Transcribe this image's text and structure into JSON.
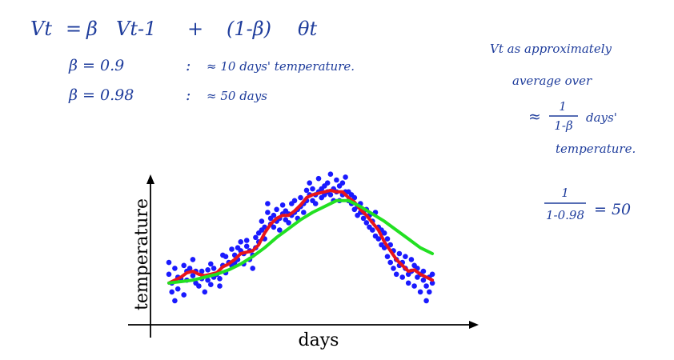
{
  "notes": {
    "formula": {
      "lhs": "Vt",
      "eq": "=",
      "beta": "β",
      "prev": "Vt-1",
      "plus": "+",
      "one_minus_beta": "(1-β)",
      "theta": "θt"
    },
    "beta_rows": [
      {
        "beta": "β = 0.9",
        "sep": ":",
        "approx": "≈ 10 days' temperature."
      },
      {
        "beta": "β = 0.98",
        "sep": ":",
        "approx": "≈ 50 days"
      }
    ],
    "side": {
      "line1": "Vt as approximately",
      "line2": "average over",
      "approx_sym": "≈",
      "frac_num": "1",
      "frac_den": "1-β",
      "days": "days'",
      "line4": "temperature.",
      "calc_num": "1",
      "calc_den": "1-0.98",
      "calc_eq": "= 50"
    }
  },
  "chart_data": {
    "type": "scatter",
    "title": "",
    "xlabel": "days",
    "ylabel": "temperature",
    "xlim": [
      0,
      100
    ],
    "ylim": [
      0,
      100
    ],
    "grid": false,
    "legend": "none",
    "ticks": "none",
    "colors": {
      "scatter": "#1a1aff",
      "red_line": "#e8141b",
      "green_line": "#22e022",
      "axis": "#000000"
    },
    "scatter_points": [
      [
        4,
        38
      ],
      [
        4,
        30
      ],
      [
        5,
        24
      ],
      [
        5,
        18
      ],
      [
        6,
        34
      ],
      [
        6,
        12
      ],
      [
        7,
        28
      ],
      [
        7,
        20
      ],
      [
        8,
        27
      ],
      [
        9,
        36
      ],
      [
        9,
        16
      ],
      [
        10,
        26
      ],
      [
        10,
        32
      ],
      [
        11,
        34
      ],
      [
        12,
        40
      ],
      [
        12,
        29
      ],
      [
        13,
        32
      ],
      [
        13,
        24
      ],
      [
        14,
        22
      ],
      [
        15,
        32
      ],
      [
        15,
        27
      ],
      [
        16,
        18
      ],
      [
        17,
        33
      ],
      [
        17,
        26
      ],
      [
        18,
        23
      ],
      [
        18,
        37
      ],
      [
        19,
        28
      ],
      [
        19,
        34
      ],
      [
        20,
        30
      ],
      [
        21,
        27
      ],
      [
        21,
        22
      ],
      [
        22,
        36
      ],
      [
        22,
        43
      ],
      [
        23,
        42
      ],
      [
        23,
        31
      ],
      [
        24,
        38
      ],
      [
        25,
        36
      ],
      [
        25,
        47
      ],
      [
        26,
        43
      ],
      [
        26,
        38
      ],
      [
        27,
        48
      ],
      [
        27,
        40
      ],
      [
        28,
        46
      ],
      [
        28,
        52
      ],
      [
        29,
        44
      ],
      [
        29,
        37
      ],
      [
        30,
        49
      ],
      [
        30,
        53
      ],
      [
        31,
        46
      ],
      [
        31,
        40
      ],
      [
        32,
        43
      ],
      [
        32,
        34
      ],
      [
        33,
        48
      ],
      [
        33,
        55
      ],
      [
        34,
        52
      ],
      [
        34,
        58
      ],
      [
        35,
        60
      ],
      [
        35,
        66
      ],
      [
        36,
        62
      ],
      [
        36,
        54
      ],
      [
        37,
        72
      ],
      [
        37,
        78
      ],
      [
        38,
        68
      ],
      [
        38,
        64
      ],
      [
        39,
        70
      ],
      [
        39,
        62
      ],
      [
        40,
        74
      ],
      [
        40,
        66
      ],
      [
        41,
        68
      ],
      [
        41,
        60
      ],
      [
        42,
        71
      ],
      [
        42,
        77
      ],
      [
        43,
        67
      ],
      [
        43,
        73
      ],
      [
        44,
        65
      ],
      [
        44,
        71
      ],
      [
        45,
        78
      ],
      [
        45,
        70
      ],
      [
        46,
        72
      ],
      [
        46,
        80
      ],
      [
        47,
        74
      ],
      [
        47,
        68
      ],
      [
        48,
        82
      ],
      [
        48,
        76
      ],
      [
        49,
        78
      ],
      [
        49,
        72
      ],
      [
        50,
        87
      ],
      [
        50,
        80
      ],
      [
        51,
        92
      ],
      [
        51,
        84
      ],
      [
        52,
        80
      ],
      [
        52,
        88
      ],
      [
        53,
        84
      ],
      [
        53,
        78
      ],
      [
        54,
        95
      ],
      [
        54,
        86
      ],
      [
        55,
        88
      ],
      [
        55,
        82
      ],
      [
        56,
        84
      ],
      [
        56,
        90
      ],
      [
        57,
        92
      ],
      [
        57,
        86
      ],
      [
        58,
        98
      ],
      [
        58,
        84
      ],
      [
        59,
        88
      ],
      [
        59,
        80
      ],
      [
        60,
        94
      ],
      [
        60,
        86
      ],
      [
        61,
        90
      ],
      [
        61,
        80
      ],
      [
        62,
        84
      ],
      [
        62,
        92
      ],
      [
        63,
        86
      ],
      [
        63,
        96
      ],
      [
        64,
        80
      ],
      [
        64,
        86
      ],
      [
        65,
        78
      ],
      [
        65,
        84
      ],
      [
        66,
        74
      ],
      [
        66,
        82
      ],
      [
        67,
        76
      ],
      [
        67,
        70
      ],
      [
        68,
        72
      ],
      [
        68,
        78
      ],
      [
        69,
        68
      ],
      [
        69,
        72
      ],
      [
        70,
        74
      ],
      [
        70,
        65
      ],
      [
        71,
        70
      ],
      [
        71,
        62
      ],
      [
        72,
        66
      ],
      [
        72,
        60
      ],
      [
        73,
        72
      ],
      [
        73,
        56
      ],
      [
        74,
        62
      ],
      [
        74,
        54
      ],
      [
        75,
        60
      ],
      [
        75,
        50
      ],
      [
        76,
        58
      ],
      [
        76,
        48
      ],
      [
        77,
        54
      ],
      [
        77,
        42
      ],
      [
        78,
        50
      ],
      [
        78,
        38
      ],
      [
        79,
        46
      ],
      [
        79,
        34
      ],
      [
        80,
        40
      ],
      [
        80,
        30
      ],
      [
        81,
        44
      ],
      [
        81,
        36
      ],
      [
        82,
        38
      ],
      [
        82,
        28
      ],
      [
        83,
        42
      ],
      [
        83,
        34
      ],
      [
        84,
        30
      ],
      [
        84,
        24
      ],
      [
        85,
        40
      ],
      [
        85,
        32
      ],
      [
        86,
        36
      ],
      [
        86,
        22
      ],
      [
        87,
        34
      ],
      [
        87,
        28
      ],
      [
        88,
        30
      ],
      [
        88,
        18
      ],
      [
        89,
        26
      ],
      [
        89,
        32
      ],
      [
        90,
        22
      ],
      [
        90,
        12
      ],
      [
        91,
        28
      ],
      [
        91,
        18
      ],
      [
        92,
        24
      ],
      [
        92,
        30
      ]
    ],
    "series": [
      {
        "values": [
          [
            4,
            24
          ],
          [
            6,
            26
          ],
          [
            8,
            28
          ],
          [
            10,
            31
          ],
          [
            12,
            32
          ],
          [
            14,
            30
          ],
          [
            16,
            29
          ],
          [
            18,
            30
          ],
          [
            20,
            31
          ],
          [
            22,
            35
          ],
          [
            24,
            37
          ],
          [
            26,
            40
          ],
          [
            28,
            44
          ],
          [
            30,
            45
          ],
          [
            32,
            46
          ],
          [
            34,
            50
          ],
          [
            36,
            58
          ],
          [
            38,
            64
          ],
          [
            40,
            68
          ],
          [
            42,
            70
          ],
          [
            44,
            70
          ],
          [
            46,
            73
          ],
          [
            48,
            77
          ],
          [
            50,
            82
          ],
          [
            52,
            84
          ],
          [
            54,
            85
          ],
          [
            56,
            86
          ],
          [
            58,
            87
          ],
          [
            60,
            86
          ],
          [
            62,
            86
          ],
          [
            64,
            82
          ],
          [
            66,
            79
          ],
          [
            68,
            74
          ],
          [
            70,
            70
          ],
          [
            72,
            65
          ],
          [
            74,
            60
          ],
          [
            76,
            52
          ],
          [
            78,
            46
          ],
          [
            80,
            40
          ],
          [
            82,
            36
          ],
          [
            84,
            32
          ],
          [
            86,
            33
          ],
          [
            88,
            30
          ],
          [
            90,
            28
          ],
          [
            92,
            26
          ]
        ]
      },
      {
        "values": [
          [
            4,
            24
          ],
          [
            8,
            25
          ],
          [
            12,
            26
          ],
          [
            16,
            28
          ],
          [
            20,
            30
          ],
          [
            24,
            33
          ],
          [
            28,
            37
          ],
          [
            32,
            42
          ],
          [
            36,
            48
          ],
          [
            40,
            55
          ],
          [
            44,
            61
          ],
          [
            48,
            67
          ],
          [
            52,
            72
          ],
          [
            56,
            76
          ],
          [
            60,
            80
          ],
          [
            64,
            80
          ],
          [
            68,
            76
          ],
          [
            72,
            71
          ],
          [
            76,
            66
          ],
          [
            80,
            60
          ],
          [
            84,
            54
          ],
          [
            88,
            48
          ],
          [
            92,
            44
          ]
        ]
      }
    ]
  }
}
